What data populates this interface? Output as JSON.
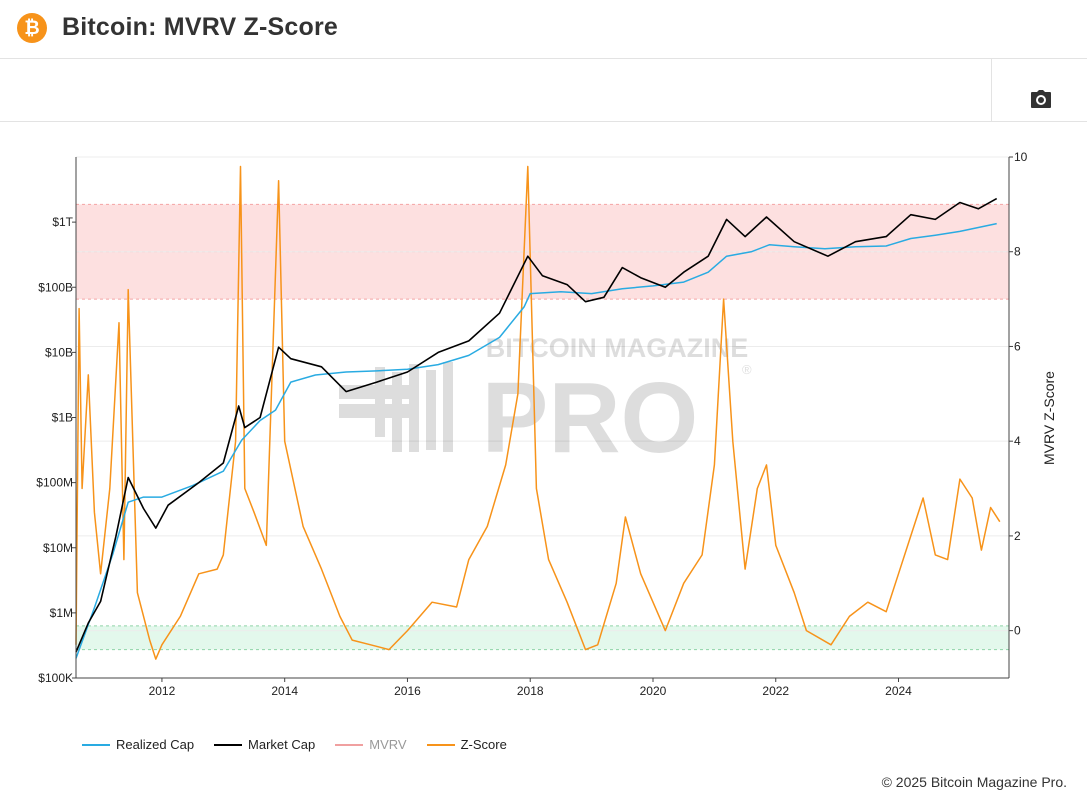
{
  "header": {
    "title": "Bitcoin: MVRV Z-Score",
    "logo_glyph": "₿",
    "logo_color": "#f7931a"
  },
  "toolbar": {
    "camera_icon": "camera-icon"
  },
  "watermark": {
    "line1": "BITCOIN MAGAZINE",
    "line2": "PRO",
    "reg": "®"
  },
  "legend": [
    {
      "label": "Realized Cap",
      "color": "#29abe2",
      "muted": false
    },
    {
      "label": "Market Cap",
      "color": "#000000",
      "muted": false
    },
    {
      "label": "MVRV",
      "color": "#f0a0a0",
      "muted": true
    },
    {
      "label": "Z-Score",
      "color": "#f7931a",
      "muted": false
    }
  ],
  "footer": {
    "copyright": "© 2025 Bitcoin Magazine Pro."
  },
  "chart_data": {
    "type": "line",
    "title": "Bitcoin: MVRV Z-Score",
    "x_range": [
      2010.6,
      2025.8
    ],
    "x_ticks": [
      "2012",
      "2014",
      "2016",
      "2018",
      "2020",
      "2022",
      "2024"
    ],
    "x_tick_years": [
      2012,
      2014,
      2016,
      2018,
      2020,
      2022,
      2024
    ],
    "y_left": {
      "scale": "log",
      "range": [
        100000,
        10000000000000
      ],
      "ticks": [
        {
          "label": "$100K",
          "value": 100000
        },
        {
          "label": "$1M",
          "value": 1000000
        },
        {
          "label": "$10M",
          "value": 10000000
        },
        {
          "label": "$100M",
          "value": 100000000
        },
        {
          "label": "$1B",
          "value": 1000000000
        },
        {
          "label": "$10B",
          "value": 10000000000
        },
        {
          "label": "$100B",
          "value": 100000000000
        },
        {
          "label": "$1T",
          "value": 1000000000000
        }
      ]
    },
    "y_right": {
      "label": "MVRV Z-Score",
      "range": [
        -1,
        10
      ],
      "ticks": [
        "0",
        "2",
        "4",
        "6",
        "8",
        "10"
      ]
    },
    "zones": [
      {
        "name": "high",
        "from": 7,
        "to": 9,
        "color": "#fde0e0"
      },
      {
        "name": "low",
        "from": -0.4,
        "to": 0.1,
        "color": "#e3f8ec"
      }
    ],
    "grid": true,
    "legend_position": "bottom-left",
    "series": [
      {
        "name": "Realized Cap",
        "axis": "left",
        "color": "#29abe2",
        "points": [
          [
            2010.6,
            200000
          ],
          [
            2010.9,
            1200000
          ],
          [
            2011.2,
            8000000
          ],
          [
            2011.45,
            50000000
          ],
          [
            2011.7,
            60000000
          ],
          [
            2012.0,
            60000000
          ],
          [
            2012.5,
            90000000
          ],
          [
            2013.0,
            150000000
          ],
          [
            2013.3,
            450000000
          ],
          [
            2013.6,
            900000000
          ],
          [
            2013.85,
            1300000000
          ],
          [
            2014.1,
            3500000000
          ],
          [
            2014.5,
            4500000000
          ],
          [
            2015.0,
            5000000000
          ],
          [
            2015.5,
            5200000000
          ],
          [
            2016.0,
            5500000000
          ],
          [
            2016.5,
            6500000000
          ],
          [
            2017.0,
            9000000000
          ],
          [
            2017.5,
            17000000000
          ],
          [
            2017.9,
            50000000000
          ],
          [
            2018.0,
            80000000000
          ],
          [
            2018.5,
            85000000000
          ],
          [
            2019.0,
            80000000000
          ],
          [
            2019.5,
            95000000000
          ],
          [
            2020.0,
            105000000000
          ],
          [
            2020.5,
            120000000000
          ],
          [
            2020.9,
            170000000000
          ],
          [
            2021.2,
            300000000000
          ],
          [
            2021.6,
            350000000000
          ],
          [
            2021.9,
            450000000000
          ],
          [
            2022.3,
            420000000000
          ],
          [
            2022.8,
            390000000000
          ],
          [
            2023.3,
            420000000000
          ],
          [
            2023.8,
            430000000000
          ],
          [
            2024.2,
            560000000000
          ],
          [
            2024.6,
            630000000000
          ],
          [
            2025.0,
            720000000000
          ],
          [
            2025.6,
            950000000000
          ]
        ]
      },
      {
        "name": "Market Cap",
        "axis": "left",
        "color": "#000000",
        "points": [
          [
            2010.6,
            250000
          ],
          [
            2010.8,
            700000
          ],
          [
            2011.0,
            1500000
          ],
          [
            2011.25,
            15000000
          ],
          [
            2011.45,
            120000000
          ],
          [
            2011.7,
            40000000
          ],
          [
            2011.9,
            20000000
          ],
          [
            2012.1,
            45000000
          ],
          [
            2012.6,
            100000000
          ],
          [
            2013.0,
            200000000
          ],
          [
            2013.25,
            1500000000
          ],
          [
            2013.35,
            700000000
          ],
          [
            2013.6,
            1000000000
          ],
          [
            2013.9,
            12000000000
          ],
          [
            2014.1,
            8000000000
          ],
          [
            2014.6,
            6000000000
          ],
          [
            2015.0,
            2500000000
          ],
          [
            2015.5,
            3500000000
          ],
          [
            2016.0,
            5000000000
          ],
          [
            2016.5,
            10000000000
          ],
          [
            2017.0,
            15000000000
          ],
          [
            2017.5,
            40000000000
          ],
          [
            2017.96,
            300000000000
          ],
          [
            2018.2,
            150000000000
          ],
          [
            2018.6,
            110000000000
          ],
          [
            2018.9,
            60000000000
          ],
          [
            2019.2,
            70000000000
          ],
          [
            2019.5,
            200000000000
          ],
          [
            2019.8,
            140000000000
          ],
          [
            2020.2,
            100000000000
          ],
          [
            2020.5,
            170000000000
          ],
          [
            2020.9,
            300000000000
          ],
          [
            2021.2,
            1100000000000
          ],
          [
            2021.5,
            600000000000
          ],
          [
            2021.85,
            1200000000000
          ],
          [
            2022.3,
            500000000000
          ],
          [
            2022.85,
            300000000000
          ],
          [
            2023.3,
            500000000000
          ],
          [
            2023.8,
            600000000000
          ],
          [
            2024.2,
            1300000000000
          ],
          [
            2024.6,
            1100000000000
          ],
          [
            2025.0,
            2000000000000
          ],
          [
            2025.3,
            1600000000000
          ],
          [
            2025.6,
            2300000000000
          ]
        ]
      },
      {
        "name": "Z-Score",
        "axis": "right",
        "color": "#f7931a",
        "points": [
          [
            2010.6,
            -0.3
          ],
          [
            2010.65,
            6.8
          ],
          [
            2010.7,
            3.0
          ],
          [
            2010.8,
            5.4
          ],
          [
            2010.9,
            2.5
          ],
          [
            2011.0,
            1.2
          ],
          [
            2011.15,
            3.0
          ],
          [
            2011.3,
            6.5
          ],
          [
            2011.38,
            1.5
          ],
          [
            2011.45,
            7.2
          ],
          [
            2011.6,
            0.8
          ],
          [
            2011.8,
            -0.2
          ],
          [
            2011.9,
            -0.6
          ],
          [
            2012.0,
            -0.3
          ],
          [
            2012.3,
            0.3
          ],
          [
            2012.6,
            1.2
          ],
          [
            2012.9,
            1.3
          ],
          [
            2013.0,
            1.6
          ],
          [
            2013.2,
            4.0
          ],
          [
            2013.28,
            9.8
          ],
          [
            2013.35,
            3.0
          ],
          [
            2013.5,
            2.5
          ],
          [
            2013.7,
            1.8
          ],
          [
            2013.9,
            9.5
          ],
          [
            2014.0,
            4.0
          ],
          [
            2014.3,
            2.2
          ],
          [
            2014.6,
            1.3
          ],
          [
            2014.9,
            0.3
          ],
          [
            2015.1,
            -0.2
          ],
          [
            2015.4,
            -0.3
          ],
          [
            2015.7,
            -0.4
          ],
          [
            2016.0,
            0.0
          ],
          [
            2016.4,
            0.6
          ],
          [
            2016.8,
            0.5
          ],
          [
            2017.0,
            1.5
          ],
          [
            2017.3,
            2.2
          ],
          [
            2017.6,
            3.5
          ],
          [
            2017.8,
            5.0
          ],
          [
            2017.96,
            9.8
          ],
          [
            2018.1,
            3.0
          ],
          [
            2018.3,
            1.5
          ],
          [
            2018.6,
            0.6
          ],
          [
            2018.9,
            -0.4
          ],
          [
            2019.1,
            -0.3
          ],
          [
            2019.4,
            1.0
          ],
          [
            2019.55,
            2.4
          ],
          [
            2019.8,
            1.2
          ],
          [
            2020.2,
            0.0
          ],
          [
            2020.5,
            1.0
          ],
          [
            2020.8,
            1.6
          ],
          [
            2021.0,
            3.5
          ],
          [
            2021.15,
            7.0
          ],
          [
            2021.3,
            4.0
          ],
          [
            2021.5,
            1.3
          ],
          [
            2021.7,
            3.0
          ],
          [
            2021.85,
            3.5
          ],
          [
            2022.0,
            1.8
          ],
          [
            2022.3,
            0.8
          ],
          [
            2022.5,
            0.0
          ],
          [
            2022.9,
            -0.3
          ],
          [
            2023.2,
            0.3
          ],
          [
            2023.5,
            0.6
          ],
          [
            2023.8,
            0.4
          ],
          [
            2024.0,
            1.2
          ],
          [
            2024.2,
            2.0
          ],
          [
            2024.4,
            2.8
          ],
          [
            2024.6,
            1.6
          ],
          [
            2024.8,
            1.5
          ],
          [
            2025.0,
            3.2
          ],
          [
            2025.2,
            2.8
          ],
          [
            2025.35,
            1.7
          ],
          [
            2025.5,
            2.6
          ],
          [
            2025.65,
            2.3
          ]
        ]
      }
    ]
  }
}
